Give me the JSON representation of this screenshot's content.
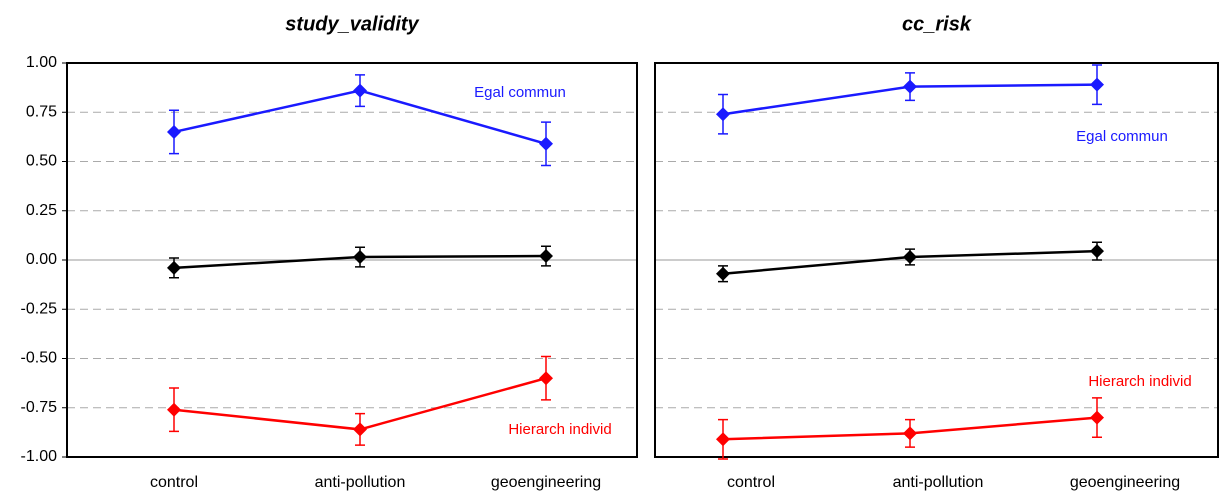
{
  "chart_data": [
    {
      "type": "line",
      "title": "study_validity",
      "categories": [
        "control",
        "anti-pollution",
        "geoengineering"
      ],
      "ylim": [
        -1,
        1
      ],
      "yticks": [
        {
          "value": -1,
          "label": "-1.00"
        },
        {
          "value": -0.75,
          "label": "-0.75"
        },
        {
          "value": -0.5,
          "label": "-0.50"
        },
        {
          "value": -0.25,
          "label": "-0.25"
        },
        {
          "value": 0,
          "label": "0.00"
        },
        {
          "value": 0.25,
          "label": "0.25"
        },
        {
          "value": 0.5,
          "label": "0.50"
        },
        {
          "value": 0.75,
          "label": "0.75"
        },
        {
          "value": 1,
          "label": "1.00"
        }
      ],
      "grid": true,
      "series": [
        {
          "name": "Egal commun",
          "color": "#1a1aff",
          "values": [
            0.65,
            0.86,
            0.59
          ],
          "errors": [
            0.11,
            0.08,
            0.11
          ]
        },
        {
          "color": "#000000",
          "values": [
            -0.04,
            0.015,
            0.02
          ],
          "errors": [
            0.05,
            0.05,
            0.05
          ]
        },
        {
          "name": "Hierarch individ",
          "color": "#ff0000",
          "values": [
            -0.76,
            -0.86,
            -0.6
          ],
          "errors": [
            0.11,
            0.08,
            0.11
          ]
        }
      ]
    },
    {
      "type": "line",
      "title": "cc_risk",
      "categories": [
        "control",
        "anti-pollution",
        "geoengineering"
      ],
      "ylim": [
        -1,
        1
      ],
      "yticks": [
        -1,
        -0.75,
        -0.5,
        -0.25,
        0,
        0.25,
        0.5,
        0.75,
        1
      ],
      "grid": true,
      "series": [
        {
          "name": "Egal commun",
          "color": "#1a1aff",
          "values": [
            0.74,
            0.88,
            0.89
          ],
          "errors": [
            0.1,
            0.07,
            0.1
          ]
        },
        {
          "color": "#000000",
          "values": [
            -0.07,
            0.015,
            0.045
          ],
          "errors": [
            0.04,
            0.04,
            0.045
          ]
        },
        {
          "name": "Hierarch individ",
          "color": "#ff0000",
          "values": [
            -0.91,
            -0.88,
            -0.8
          ],
          "errors": [
            0.1,
            0.07,
            0.1
          ]
        }
      ]
    }
  ]
}
